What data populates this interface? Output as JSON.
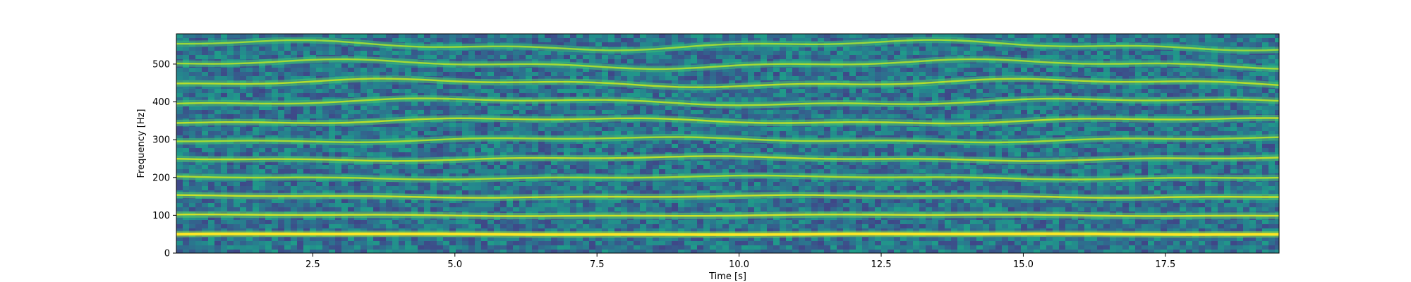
{
  "chart_data": {
    "type": "heatmap",
    "subtype": "spectrogram",
    "title": "",
    "xlabel": "Time [s]",
    "ylabel": "Frequency [Hz]",
    "xlim": [
      0.1,
      19.5
    ],
    "ylim": [
      0,
      580
    ],
    "x_ticks": [
      2.5,
      5.0,
      7.5,
      10.0,
      12.5,
      15.0,
      17.5
    ],
    "x_tick_labels": [
      "2.5",
      "5.0",
      "7.5",
      "10.0",
      "12.5",
      "15.0",
      "17.5"
    ],
    "y_ticks": [
      0,
      100,
      200,
      300,
      400,
      500
    ],
    "y_tick_labels": [
      "0",
      "100",
      "200",
      "300",
      "400",
      "500"
    ],
    "colormap": "viridis",
    "grid": false,
    "harmonics_hz": [
      50,
      100,
      150,
      200,
      250,
      300,
      350,
      400,
      450,
      500,
      550
    ],
    "harmonic_intensity": [
      1.0,
      0.78,
      0.74,
      0.6,
      0.68,
      0.56,
      0.66,
      0.6,
      0.64,
      0.55,
      0.5
    ],
    "fundamental_hz": 50
  }
}
